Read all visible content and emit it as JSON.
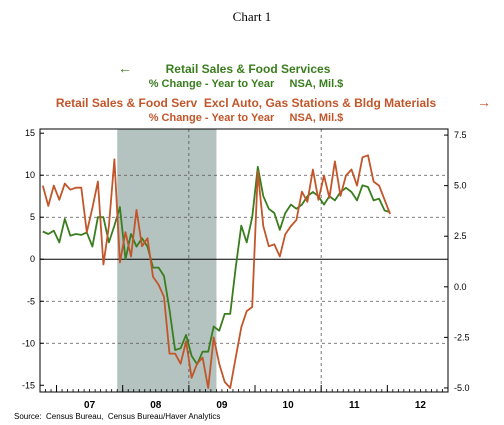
{
  "chart_data": {
    "type": "line",
    "title": "Chart 1",
    "source": "Source:  Census Bureau,  Census Bureau/Haver Analytics",
    "colors": {
      "series1": "#3a7d1e",
      "series2": "#c2562a",
      "recession": "#b4c3c0",
      "axis": "#000000",
      "grid": "#555555"
    },
    "x_axis": {
      "range": [
        2006.75,
        2012.917
      ],
      "tick_labels": [
        {
          "label": "07",
          "x": 2007.5
        },
        {
          "label": "08",
          "x": 2008.5
        },
        {
          "label": "09",
          "x": 2009.5
        },
        {
          "label": "10",
          "x": 2010.5
        },
        {
          "label": "11",
          "x": 2011.5
        },
        {
          "label": "12",
          "x": 2012.5
        }
      ],
      "year_boundaries": [
        2007,
        2008,
        2009,
        2010,
        2011,
        2012
      ]
    },
    "y_left": {
      "range": [
        -15.8,
        15.5
      ],
      "ticks": [
        15,
        10,
        5,
        0,
        -5,
        -10,
        -15
      ],
      "tick_labels": [
        "15",
        "10",
        "5",
        "0",
        "-5",
        "-10",
        "-15"
      ]
    },
    "y_right": {
      "range": [
        -5.2,
        7.8
      ],
      "ticks": [
        7.5,
        5.0,
        2.5,
        0.0,
        -2.5,
        -5.0
      ],
      "tick_labels": [
        "7.5",
        "5.0",
        "2.5",
        "0.0",
        "-2.5",
        "-5.0"
      ]
    },
    "recession": {
      "start": 2007.917,
      "end": 2009.417
    },
    "dashed_gridlines_y": [
      10,
      5,
      -5,
      -10
    ],
    "vertical_dashed_x": [
      2009.0,
      2011.0
    ],
    "legend": {
      "series1_name": "Retail Sales & Food Services",
      "series1_sub": "% Change - Year to Year     NSA, Mil.$",
      "series1_arrow": "←",
      "series2_name": "Retail Sales & Food Serv  Excl Auto, Gas Stations & Bldg Materials",
      "series2_sub": "% Change - Year to Year     NSA, Mil.$",
      "series2_arrow": "→"
    },
    "series": [
      {
        "name": "Retail Sales & Food Services",
        "axis": "left",
        "x": [
          2006.792,
          2006.875,
          2006.958,
          2007.042,
          2007.125,
          2007.208,
          2007.292,
          2007.375,
          2007.458,
          2007.542,
          2007.625,
          2007.708,
          2007.792,
          2007.875,
          2007.958,
          2008.042,
          2008.125,
          2008.208,
          2008.292,
          2008.375,
          2008.458,
          2008.542,
          2008.625,
          2008.708,
          2008.792,
          2008.875,
          2008.958,
          2009.042,
          2009.125,
          2009.208,
          2009.292,
          2009.375,
          2009.458,
          2009.542,
          2009.625,
          2009.708,
          2009.792,
          2009.875,
          2009.958,
          2010.042,
          2010.125,
          2010.208,
          2010.292,
          2010.375,
          2010.458,
          2010.542,
          2010.625,
          2010.708,
          2010.792,
          2010.875,
          2010.958,
          2011.042,
          2011.125,
          2011.208,
          2011.292,
          2011.375,
          2011.458,
          2011.542,
          2011.625,
          2011.708,
          2011.792,
          2011.875,
          2011.958,
          2012.042
        ],
        "y": [
          3.3,
          3.0,
          3.4,
          2.0,
          4.8,
          2.8,
          3.0,
          2.9,
          3.2,
          1.5,
          5.0,
          5.0,
          2.0,
          4.0,
          6.2,
          0.0,
          3.0,
          1.5,
          2.5,
          1.5,
          -1.0,
          -1.0,
          -2.0,
          -6.0,
          -10.8,
          -10.6,
          -9.0,
          -11.5,
          -12.5,
          -11.0,
          -11.0,
          -8.0,
          -8.5,
          -6.5,
          -6.5,
          -1.0,
          4.0,
          2.0,
          5.0,
          11.0,
          7.5,
          6.0,
          5.5,
          3.5,
          5.5,
          6.5,
          6.0,
          6.5,
          7.5,
          8.0,
          7.5,
          6.5,
          7.5,
          7.0,
          8.0,
          8.5,
          8.0,
          7.0,
          8.8,
          8.6,
          7.0,
          7.2,
          5.8,
          5.6
        ]
      },
      {
        "name": "Retail Sales & Food Serv  Excl Auto, Gas Stations & Bldg Materials",
        "axis": "right",
        "x": [
          2006.792,
          2006.875,
          2006.958,
          2007.042,
          2007.125,
          2007.208,
          2007.292,
          2007.375,
          2007.458,
          2007.542,
          2007.625,
          2007.708,
          2007.792,
          2007.875,
          2007.958,
          2008.042,
          2008.125,
          2008.208,
          2008.292,
          2008.375,
          2008.458,
          2008.542,
          2008.625,
          2008.708,
          2008.792,
          2008.875,
          2008.958,
          2009.042,
          2009.125,
          2009.208,
          2009.292,
          2009.375,
          2009.458,
          2009.542,
          2009.625,
          2009.708,
          2009.792,
          2009.875,
          2009.958,
          2010.042,
          2010.125,
          2010.208,
          2010.292,
          2010.375,
          2010.458,
          2010.542,
          2010.625,
          2010.708,
          2010.792,
          2010.875,
          2010.958,
          2011.042,
          2011.125,
          2011.208,
          2011.292,
          2011.375,
          2011.458,
          2011.542,
          2011.625,
          2011.708,
          2011.792,
          2011.875,
          2011.958,
          2012.042
        ],
        "y": [
          5.0,
          4.0,
          5.0,
          4.3,
          5.1,
          4.8,
          4.9,
          4.9,
          2.7,
          3.9,
          5.2,
          1.1,
          3.0,
          6.3,
          1.2,
          2.7,
          1.5,
          3.8,
          2.0,
          2.4,
          0.5,
          0.1,
          -0.5,
          -3.3,
          -3.3,
          -3.8,
          -2.7,
          -4.5,
          -3.8,
          -3.5,
          -5.0,
          -2.5,
          -3.8,
          -4.7,
          -5.0,
          -3.5,
          -2.0,
          -1.2,
          -1.0,
          5.7,
          3.0,
          2.0,
          2.1,
          1.5,
          2.6,
          3.0,
          3.3,
          4.7,
          4.2,
          5.8,
          4.3,
          5.5,
          4.4,
          6.2,
          4.5,
          5.5,
          5.8,
          5.0,
          6.4,
          6.5,
          5.2,
          5.0,
          4.3,
          3.6
        ]
      }
    ]
  }
}
